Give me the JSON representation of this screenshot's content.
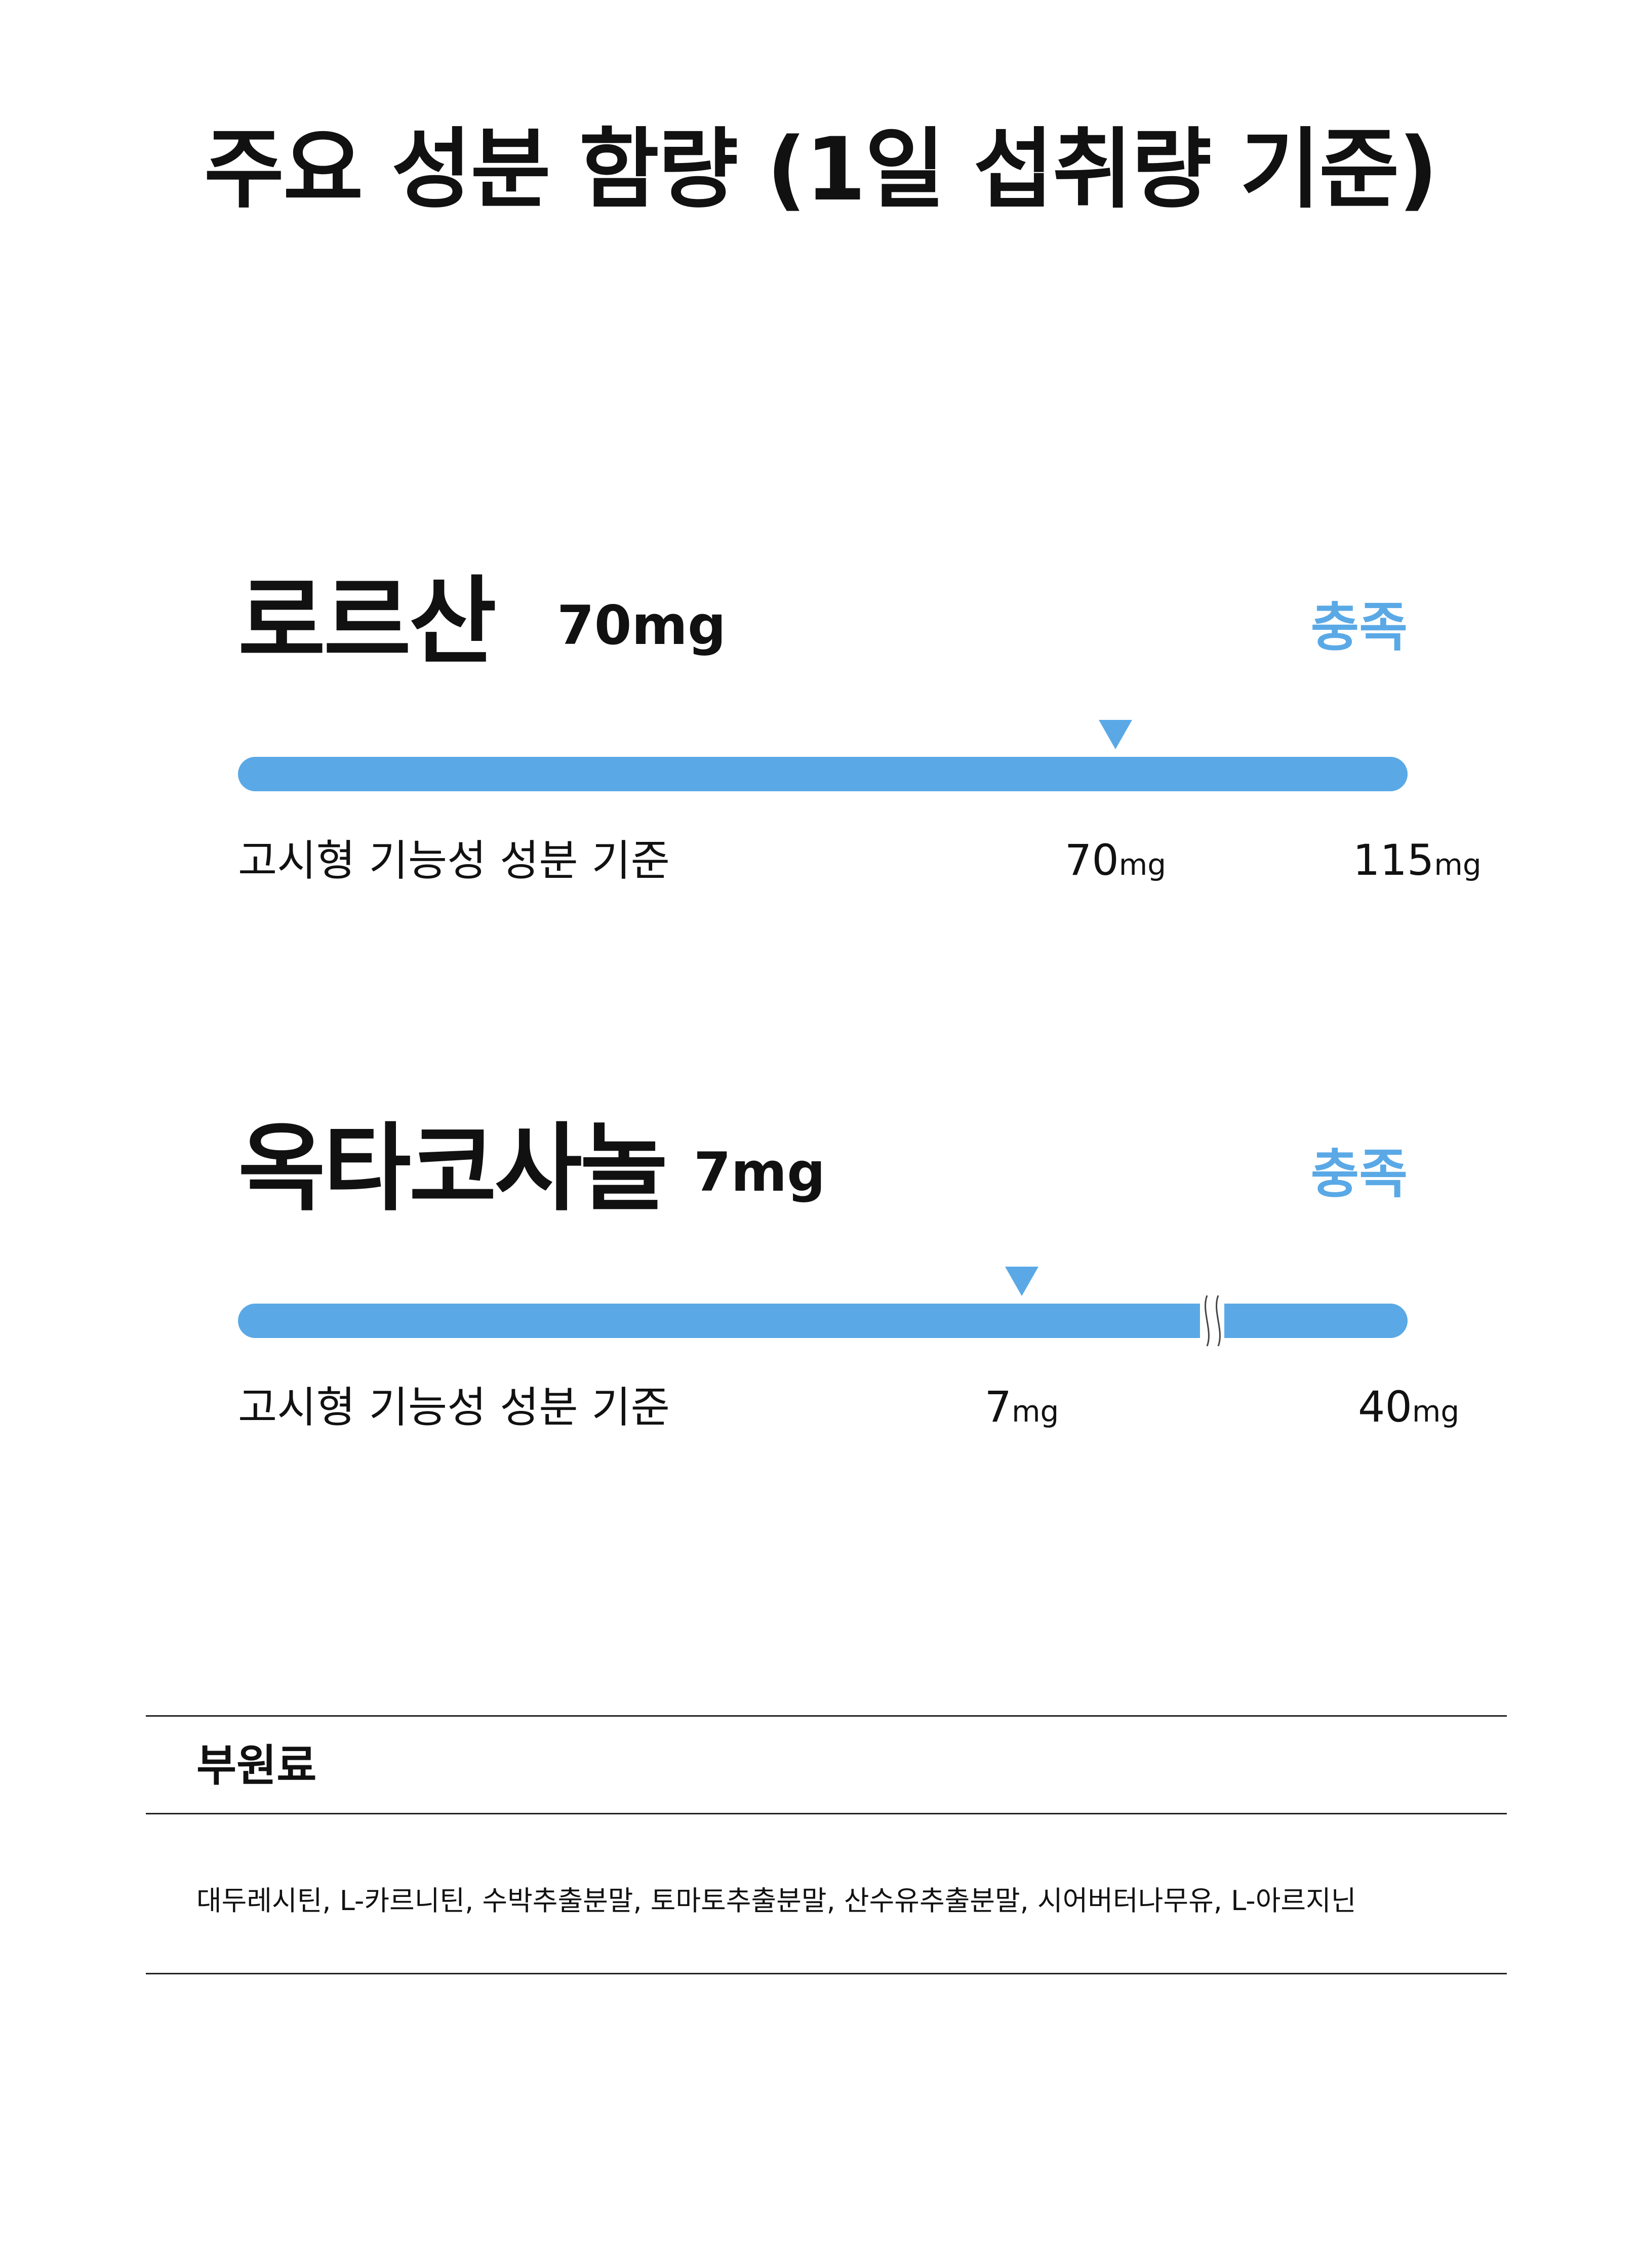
{
  "title": "주요 성분 함량 (1일 섭취량 기준)",
  "colors": {
    "accent": "#5aa9e6",
    "text": "#111111",
    "rule": "#222222"
  },
  "ingredients": [
    {
      "name": "로르산",
      "amount": "70mg",
      "status": "충족",
      "scale_label": "고시형 기능성 성분 기준",
      "standard_value": "70",
      "standard_unit": "mg",
      "max_value": "115",
      "max_unit": "mg",
      "marker_fraction": 0.75,
      "axis_break": false
    },
    {
      "name": "옥타코사놀",
      "amount": "7mg",
      "status": "충족",
      "scale_label": "고시형 기능성 성분 기준",
      "standard_value": "7",
      "standard_unit": "mg",
      "max_value": "40",
      "max_unit": "mg",
      "marker_fraction": 0.67,
      "axis_break": true
    }
  ],
  "sub_ingredients": {
    "title": "부원료",
    "list": "대두레시틴, L-카르니틴, 수박추출분말, 토마토추출분말, 산수유추출분말, 시어버터나무유, L-아르지닌"
  }
}
